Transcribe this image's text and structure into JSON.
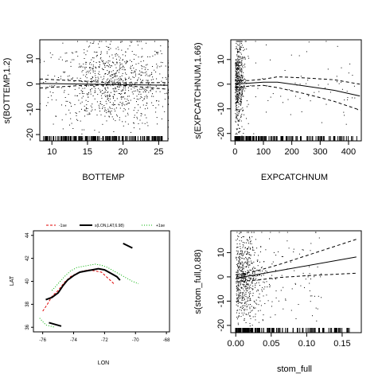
{
  "chart_data": [
    {
      "type": "line",
      "panel": "top-left",
      "xlabel": "BOTTEMP",
      "ylabel": "s(BOTTEMP,1.2)",
      "xlim": [
        8.3,
        26.3
      ],
      "ylim": [
        -22.5,
        17.5
      ],
      "xticks": [
        10,
        15,
        20,
        25
      ],
      "yticks": [
        -20,
        -10,
        0,
        10
      ],
      "fit": {
        "x": [
          8.3,
          26.3
        ],
        "y": [
          0.2,
          -0.5
        ]
      },
      "upper": {
        "x": [
          8.3,
          14,
          19,
          26.3
        ],
        "y": [
          2.0,
          1.2,
          0.4,
          0.6
        ]
      },
      "lower": {
        "x": [
          8.3,
          14,
          19,
          26.3
        ],
        "y": [
          -1.6,
          -0.6,
          -0.3,
          -2.1
        ]
      },
      "rug_range": [
        8.6,
        25.8
      ],
      "points": {
        "count": 900,
        "x_center": 18.5,
        "x_spread": 4.2,
        "y_spread": 8.5
      }
    },
    {
      "type": "line",
      "panel": "top-right",
      "xlabel": "EXPCATCHNUM",
      "ylabel": "s(EXPCATCHNUM,1.66)",
      "xlim": [
        -15,
        445
      ],
      "ylim": [
        -23,
        18
      ],
      "xticks": [
        0,
        100,
        200,
        300,
        400
      ],
      "yticks": [
        -20,
        -10,
        0,
        10
      ],
      "fit": {
        "x": [
          0,
          50,
          100,
          150,
          250,
          350,
          440
        ],
        "y": [
          0,
          0.4,
          0.8,
          0.8,
          -0.8,
          -2.5,
          -4.8
        ]
      },
      "upper": {
        "x": [
          0,
          50,
          100,
          150,
          250,
          350,
          440
        ],
        "y": [
          1.3,
          1.5,
          2.0,
          3.0,
          2.5,
          1.8,
          0
        ]
      },
      "lower": {
        "x": [
          0,
          50,
          100,
          150,
          250,
          350,
          440
        ],
        "y": [
          -1.4,
          -0.8,
          -0.5,
          -1.4,
          -4.0,
          -7.0,
          -10.5
        ]
      },
      "rug_range": [
        0,
        440
      ],
      "points": {
        "count": 600,
        "dense_max_x": 25,
        "sparse_max_x": 440,
        "y_spread": 9
      }
    },
    {
      "type": "line",
      "panel": "bottom-left",
      "xlabel": "LON",
      "ylabel": "LAT",
      "xlim": [
        -76.6,
        -67.8
      ],
      "ylim": [
        35.6,
        44.4
      ],
      "xticks": [
        -76,
        -74,
        -72,
        -70,
        -68
      ],
      "yticks": [
        36,
        38,
        40,
        42,
        44
      ],
      "legend": [
        {
          "label": "-1se",
          "color": "#e00000",
          "style": "dashed"
        },
        {
          "label": "s(LON,LAT,6.98)",
          "color": "#000000",
          "style": "solid"
        },
        {
          "label": "+1se",
          "color": "#00b000",
          "style": "dotted"
        }
      ],
      "contours": [
        {
          "name": "-1se",
          "color": "#e00000",
          "x": [
            -76.0,
            -75.7,
            -75.4,
            -75.0,
            -74.6,
            -74.2,
            -73.8,
            -73.4,
            -73.0,
            -72.6,
            -72.2,
            -71.8,
            -71.4
          ],
          "y": [
            37.4,
            38.0,
            38.7,
            39.2,
            39.9,
            40.4,
            40.7,
            40.9,
            41.0,
            40.9,
            40.8,
            40.3,
            39.8
          ]
        },
        {
          "name": "s(LON,LAT,6.98)",
          "color": "#000000",
          "x": [
            -75.8,
            -75.4,
            -75.0,
            -74.7,
            -74.4,
            -74.0,
            -73.6,
            -73.2,
            -72.8,
            -72.4,
            -72.0,
            -71.6,
            -71.2,
            -71.0
          ],
          "y": [
            38.4,
            38.6,
            39.0,
            39.6,
            40.1,
            40.5,
            40.8,
            40.9,
            41.0,
            41.1,
            41.0,
            40.7,
            40.4,
            40.1
          ]
        },
        {
          "name": "+1se",
          "color": "#00b000",
          "x": [
            -75.4,
            -75.0,
            -74.6,
            -74.2,
            -73.8,
            -73.4,
            -73.0,
            -72.6,
            -72.2,
            -71.8,
            -71.4,
            -71.0,
            -70.6,
            -70.2,
            -69.8
          ],
          "y": [
            39.2,
            39.8,
            40.4,
            40.9,
            41.2,
            41.3,
            41.4,
            41.5,
            41.4,
            41.2,
            40.9,
            40.6,
            40.3,
            40.0,
            39.8
          ]
        }
      ]
    },
    {
      "type": "line",
      "panel": "bottom-right",
      "xlabel": "stom_full",
      "ylabel": "s(stom_full,0.88)",
      "xlim": [
        -0.007,
        0.177
      ],
      "ylim": [
        -23,
        19
      ],
      "xticks": [
        0.0,
        0.05,
        0.1,
        0.15
      ],
      "xtick_labels": [
        "0.00",
        "0.05",
        "0.10",
        "0.15"
      ],
      "yticks": [
        -20,
        -10,
        0,
        10
      ],
      "fit": {
        "x": [
          0,
          0.17
        ],
        "y": [
          -0.6,
          8.2
        ]
      },
      "upper": {
        "x": [
          0,
          0.03,
          0.06,
          0.1,
          0.17
        ],
        "y": [
          0.8,
          2.5,
          5.0,
          8.8,
          15.5
        ]
      },
      "lower": {
        "x": [
          0,
          0.03,
          0.06,
          0.1,
          0.17
        ],
        "y": [
          -2.0,
          -1.3,
          -0.3,
          0.5,
          1.5
        ]
      },
      "rug_range": [
        0,
        0.17
      ],
      "points": {
        "count": 700,
        "dense_max_x": 0.03,
        "sparse_max_x": 0.12,
        "y_spread": 9
      }
    }
  ]
}
